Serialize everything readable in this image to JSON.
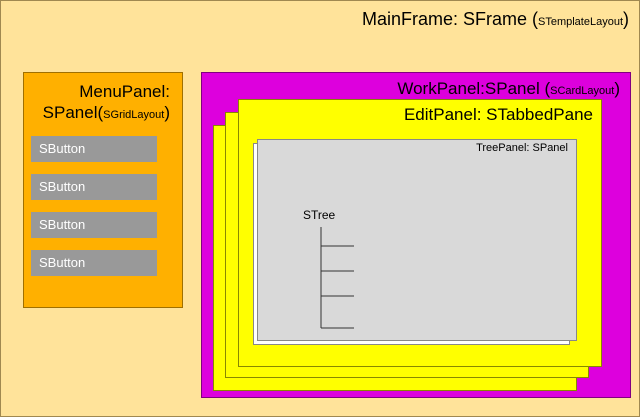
{
  "main_frame": {
    "name": "MainFrame: SFrame",
    "layout": "STemplateLayout"
  },
  "menu_panel": {
    "name_line1": "MenuPanel:",
    "name_line2": "SPanel",
    "layout": "SGridLayout"
  },
  "buttons": [
    "SButton",
    "SButton",
    "SButton",
    "SButton"
  ],
  "work_panel": {
    "name": "WorkPanel:SPanel",
    "layout": "SCardLayout"
  },
  "edit_panel": {
    "name": "EditPanel: STabbedPane"
  },
  "tree_panel": {
    "name": "TreePanel: SPanel"
  },
  "tree": {
    "label": "STree"
  },
  "colors": {
    "main_frame": "#ffe39a",
    "menu_panel": "#ffb000",
    "work_panel": "#dd00dd",
    "edit_panel": "#ffff00",
    "tree_panel": "#d9d9d9",
    "button": "#999999"
  }
}
